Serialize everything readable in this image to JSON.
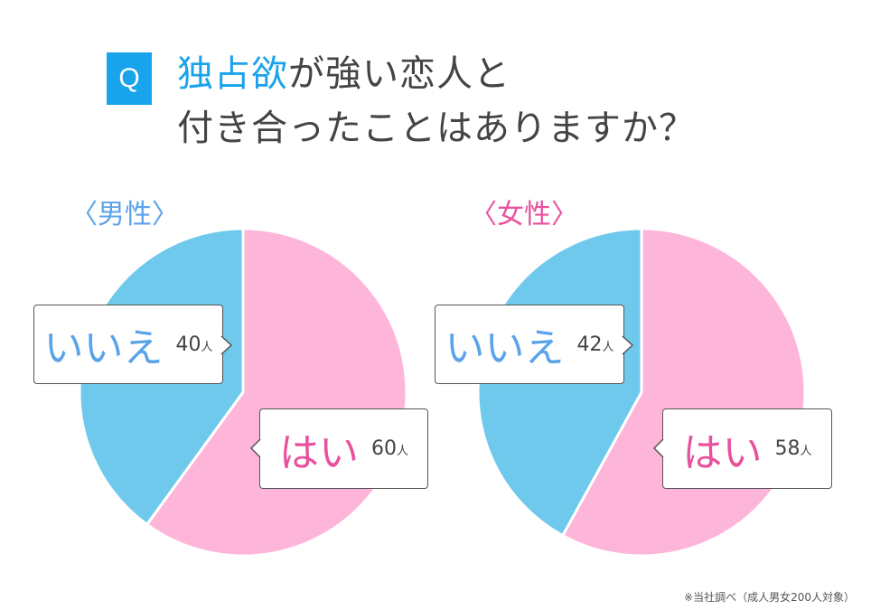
{
  "title": {
    "badge": "Q",
    "accent": "独占欲",
    "line1_rest": "が強い恋人と",
    "line2": "付き合ったことはありますか？"
  },
  "footnote": "※当社調べ（成人男女200人対象）",
  "colors": {
    "yes": "#fdb5d9",
    "no": "#6fc9ed",
    "yes_text": "#e9519e",
    "no_text": "#5aa3ea",
    "accent": "#19a3ea"
  },
  "chart_data": [
    {
      "type": "pie",
      "title": "〈男性〉",
      "unit": "人",
      "slices": [
        {
          "label": "はい",
          "value": 60,
          "value_text": "60"
        },
        {
          "label": "いいえ",
          "value": 40,
          "value_text": "40"
        }
      ]
    },
    {
      "type": "pie",
      "title": "〈女性〉",
      "unit": "人",
      "slices": [
        {
          "label": "はい",
          "value": 58,
          "value_text": "58"
        },
        {
          "label": "いいえ",
          "value": 42,
          "value_text": "42"
        }
      ]
    }
  ]
}
